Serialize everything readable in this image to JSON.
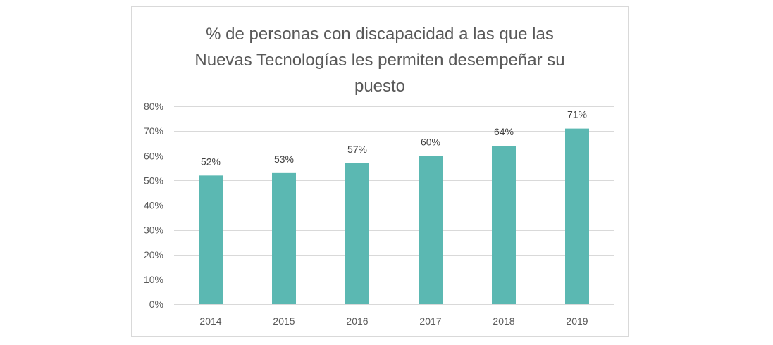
{
  "chart_data": {
    "type": "bar",
    "title": "% de personas con discapacidad a las que las\nNuevas Tecnologías les permiten desempeñar su\npuesto",
    "categories": [
      "2014",
      "2015",
      "2016",
      "2017",
      "2018",
      "2019"
    ],
    "values": [
      52,
      53,
      57,
      60,
      64,
      71
    ],
    "data_labels": [
      "52%",
      "53%",
      "57%",
      "60%",
      "64%",
      "71%"
    ],
    "ylim": [
      0,
      80
    ],
    "y_ticks": [
      0,
      10,
      20,
      30,
      40,
      50,
      60,
      70,
      80
    ],
    "y_tick_labels": [
      "0%",
      "10%",
      "20%",
      "30%",
      "40%",
      "50%",
      "60%",
      "70%",
      "80%"
    ],
    "xlabel": "",
    "ylabel": "",
    "grid": true,
    "legend": "none",
    "bar_color": "#5bb8b2",
    "grid_color": "#d9d9d9"
  }
}
